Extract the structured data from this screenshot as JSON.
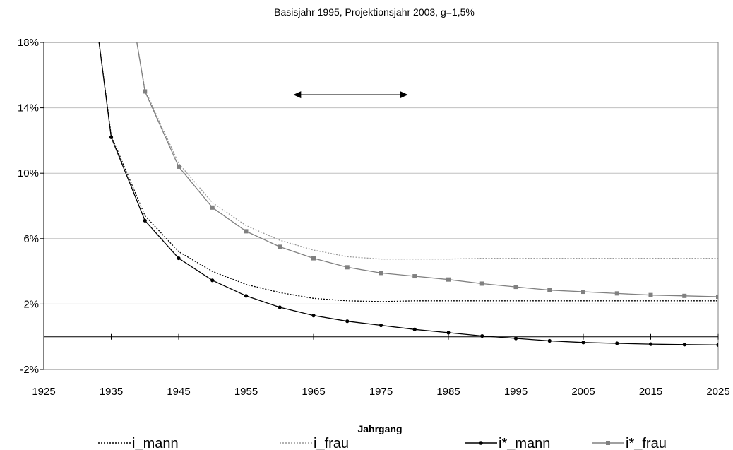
{
  "chart_data": {
    "type": "line",
    "title": "Basisjahr 1995, Projektionsjahr 2003, g=1,5%",
    "xlabel": "Jahrgang",
    "ylabel": "",
    "xlim": [
      1925,
      2025
    ],
    "ylim": [
      -2,
      18
    ],
    "x_ticks": [
      "1925",
      "1935",
      "1945",
      "1955",
      "1965",
      "1975",
      "1985",
      "1995",
      "2005",
      "2015",
      "2025"
    ],
    "y_ticks": [
      "18%",
      "14%",
      "10%",
      "6%",
      "2%",
      "-2%"
    ],
    "y_tick_values": [
      18,
      14,
      10,
      6,
      2,
      -2
    ],
    "grid": "horizontal",
    "legend_position": "bottom",
    "reference_line_x": 1975,
    "arrow_range": [
      1962,
      1979
    ],
    "arrow_y": 14.8,
    "series": [
      {
        "name": "i_mann",
        "color": "#000000",
        "style": "dotted",
        "marker": "none",
        "x": [
          1933.2,
          1935,
          1940,
          1945,
          1950,
          1955,
          1960,
          1965,
          1970,
          1975,
          1980,
          1985,
          1990,
          1995,
          2000,
          2005,
          2010,
          2015,
          2020,
          2025
        ],
        "values": [
          18,
          12.3,
          7.4,
          5.2,
          4.0,
          3.2,
          2.7,
          2.35,
          2.2,
          2.15,
          2.2,
          2.2,
          2.2,
          2.2,
          2.2,
          2.2,
          2.2,
          2.2,
          2.2,
          2.2
        ]
      },
      {
        "name": "i_frau",
        "color": "#999999",
        "style": "dotted",
        "marker": "none",
        "x": [
          1938.8,
          1940,
          1945,
          1950,
          1955,
          1960,
          1965,
          1970,
          1975,
          1980,
          1985,
          1990,
          1995,
          2000,
          2005,
          2010,
          2015,
          2020,
          2025
        ],
        "values": [
          18,
          15.1,
          10.6,
          8.2,
          6.8,
          5.9,
          5.3,
          4.9,
          4.75,
          4.75,
          4.75,
          4.8,
          4.8,
          4.8,
          4.8,
          4.8,
          4.8,
          4.8,
          4.8
        ]
      },
      {
        "name": "i*_mann",
        "color": "#000000",
        "style": "solid",
        "marker": "circle",
        "x": [
          1933.2,
          1935,
          1940,
          1945,
          1950,
          1955,
          1960,
          1965,
          1970,
          1975,
          1980,
          1985,
          1990,
          1995,
          2000,
          2005,
          2010,
          2015,
          2020,
          2025
        ],
        "values": [
          18,
          12.2,
          7.1,
          4.8,
          3.45,
          2.5,
          1.8,
          1.3,
          0.95,
          0.7,
          0.45,
          0.25,
          0.05,
          -0.1,
          -0.25,
          -0.35,
          -0.4,
          -0.45,
          -0.48,
          -0.5
        ]
      },
      {
        "name": "i*_frau",
        "color": "#808080",
        "style": "solid",
        "marker": "square",
        "x": [
          1938.8,
          1940,
          1945,
          1950,
          1955,
          1960,
          1965,
          1970,
          1975,
          1980,
          1985,
          1990,
          1995,
          2000,
          2005,
          2010,
          2015,
          2020,
          2025
        ],
        "values": [
          18,
          15.0,
          10.4,
          7.9,
          6.45,
          5.5,
          4.8,
          4.25,
          3.9,
          3.7,
          3.5,
          3.25,
          3.05,
          2.85,
          2.75,
          2.65,
          2.55,
          2.5,
          2.45
        ]
      }
    ]
  }
}
